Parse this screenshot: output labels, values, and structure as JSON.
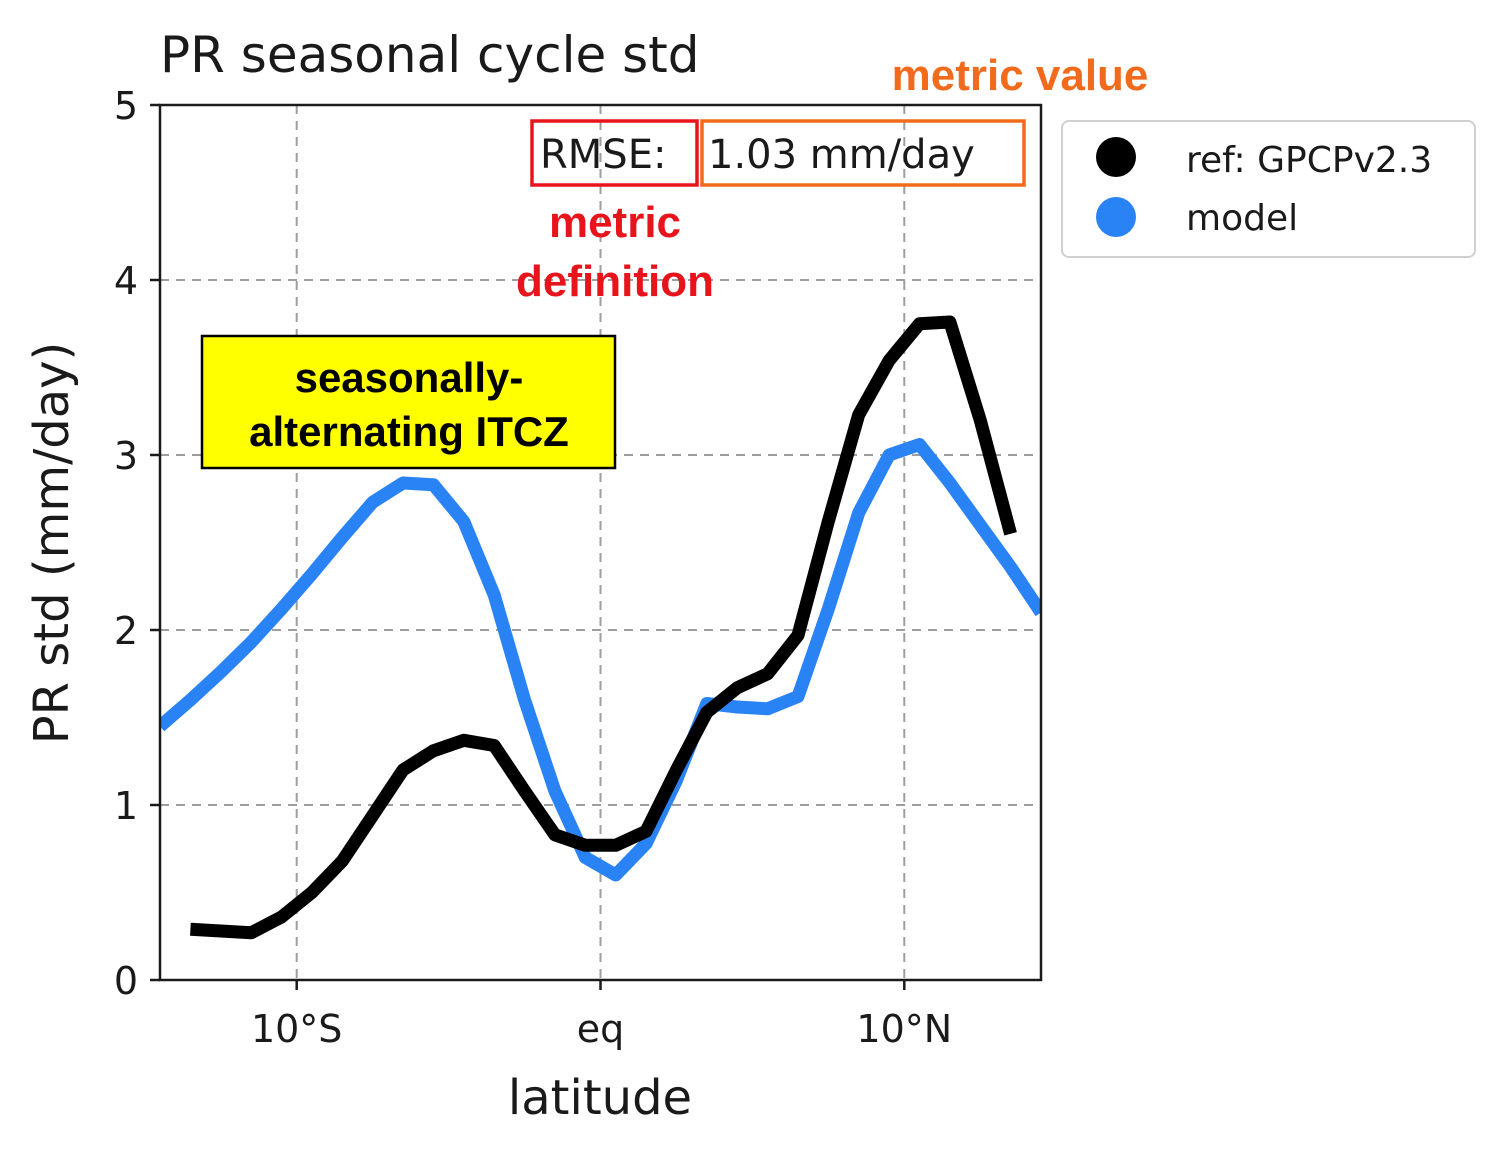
{
  "chart_data": {
    "type": "line",
    "title": "PR seasonal cycle std",
    "xlabel": "latitude",
    "ylabel": "PR std (mm/day)",
    "xlim": [
      -14.5,
      14.5
    ],
    "ylim": [
      0,
      5
    ],
    "xticks": [
      {
        "value": -10,
        "label": "10°S"
      },
      {
        "value": 0,
        "label": "eq"
      },
      {
        "value": 10,
        "label": "10°N"
      }
    ],
    "yticks": [
      0,
      1,
      2,
      3,
      4,
      5
    ],
    "grid": true,
    "legend_position": "outside-right",
    "series": [
      {
        "name": "ref: GPCPv2.3",
        "color": "#000000",
        "x": [
          -13.5,
          -12.5,
          -11.5,
          -10.5,
          -9.5,
          -8.5,
          -7.5,
          -6.5,
          -5.5,
          -4.5,
          -3.5,
          -2.5,
          -1.5,
          -0.5,
          0.5,
          1.5,
          2.5,
          3.5,
          4.5,
          5.5,
          6.5,
          7.5,
          8.5,
          9.5,
          10.5,
          11.5,
          12.5,
          13.5
        ],
        "y": [
          0.29,
          0.28,
          0.27,
          0.36,
          0.5,
          0.68,
          0.94,
          1.2,
          1.31,
          1.37,
          1.34,
          1.08,
          0.83,
          0.77,
          0.77,
          0.85,
          1.2,
          1.53,
          1.67,
          1.75,
          1.97,
          2.62,
          3.23,
          3.54,
          3.75,
          3.76,
          3.2,
          2.55
        ]
      },
      {
        "name": "model",
        "color": "#2a83f5",
        "x": [
          -14.5,
          -13.5,
          -12.5,
          -11.5,
          -10.5,
          -9.5,
          -8.5,
          -7.5,
          -6.5,
          -5.5,
          -4.5,
          -3.5,
          -2.5,
          -1.5,
          -0.5,
          0.5,
          1.5,
          2.5,
          3.5,
          4.5,
          5.5,
          6.5,
          7.5,
          8.5,
          9.5,
          10.5,
          11.5,
          12.5,
          13.5,
          14.5
        ],
        "y": [
          1.45,
          1.6,
          1.76,
          1.93,
          2.12,
          2.32,
          2.53,
          2.73,
          2.84,
          2.83,
          2.62,
          2.2,
          1.6,
          1.08,
          0.7,
          0.6,
          0.78,
          1.14,
          1.58,
          1.56,
          1.55,
          1.62,
          2.12,
          2.67,
          3.0,
          3.06,
          2.84,
          2.6,
          2.36,
          2.1
        ]
      }
    ],
    "annotations": {
      "metric_text": "RMSE:",
      "metric_value_text": "1.03 mm/day",
      "metric_definition_label": [
        "metric",
        "definition"
      ],
      "metric_value_label": "metric value",
      "itcz_label": [
        "seasonally-",
        "alternating ITCZ"
      ]
    }
  },
  "colors": {
    "metric_definition": "#e8141c",
    "metric_value": "#f26a1b",
    "itcz_box": "#ffff00"
  }
}
